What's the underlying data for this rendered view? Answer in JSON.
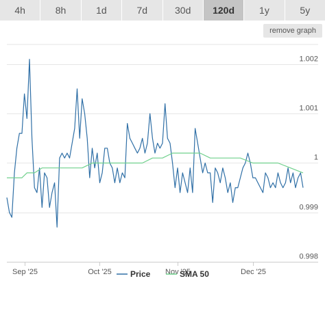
{
  "tabs": [
    {
      "label": "4h",
      "active": false
    },
    {
      "label": "8h",
      "active": false
    },
    {
      "label": "1d",
      "active": false
    },
    {
      "label": "7d",
      "active": false
    },
    {
      "label": "30d",
      "active": false
    },
    {
      "label": "120d",
      "active": true
    },
    {
      "label": "1y",
      "active": false
    },
    {
      "label": "5y",
      "active": false
    }
  ],
  "remove_graph_label": "remove graph",
  "colors": {
    "price": "#2f6fa6",
    "sma": "#6fd08c",
    "active_tab": "#c4c4c4",
    "tab": "#e6e6e6"
  },
  "chart_data": {
    "type": "line",
    "x_range": [
      "2025-08-25",
      "2025-12-27"
    ],
    "ylim": [
      0.998,
      1.0024
    ],
    "y_ticks": [
      {
        "value": 1.002,
        "label": "1.002"
      },
      {
        "value": 1.001,
        "label": "1.001"
      },
      {
        "value": 1.0,
        "label": "1"
      },
      {
        "value": 0.999,
        "label": "0.999"
      },
      {
        "value": 0.998,
        "label": "0.998"
      }
    ],
    "x_ticks": [
      {
        "date": "2025-09-01",
        "label": "Sep '25"
      },
      {
        "date": "2025-10-01",
        "label": "Oct '25"
      },
      {
        "date": "2025-11-01",
        "label": "Nov '25"
      },
      {
        "date": "2025-12-01",
        "label": "Dec '25"
      }
    ],
    "grid": true,
    "legend_position": "bottom",
    "series": [
      {
        "name": "Price",
        "points": [
          [
            "2025-08-25",
            0.9993
          ],
          [
            "2025-08-26",
            0.999
          ],
          [
            "2025-08-27",
            0.9989
          ],
          [
            "2025-08-28",
            0.9998
          ],
          [
            "2025-08-29",
            1.0003
          ],
          [
            "2025-08-30",
            1.0006
          ],
          [
            "2025-08-31",
            1.0006
          ],
          [
            "2025-09-01",
            1.0014
          ],
          [
            "2025-09-02",
            1.0009
          ],
          [
            "2025-09-03",
            1.0021
          ],
          [
            "2025-09-04",
            1.0005
          ],
          [
            "2025-09-05",
            0.9995
          ],
          [
            "2025-09-06",
            0.9994
          ],
          [
            "2025-09-07",
            0.9999
          ],
          [
            "2025-09-08",
            0.9991
          ],
          [
            "2025-09-09",
            0.9998
          ],
          [
            "2025-09-10",
            0.9997
          ],
          [
            "2025-09-11",
            0.9991
          ],
          [
            "2025-09-12",
            0.9994
          ],
          [
            "2025-09-13",
            0.9996
          ],
          [
            "2025-09-14",
            0.9987
          ],
          [
            "2025-09-15",
            1.0001
          ],
          [
            "2025-09-16",
            1.0002
          ],
          [
            "2025-09-17",
            1.0001
          ],
          [
            "2025-09-18",
            1.0002
          ],
          [
            "2025-09-19",
            1.0001
          ],
          [
            "2025-09-20",
            1.0004
          ],
          [
            "2025-09-21",
            1.0007
          ],
          [
            "2025-09-22",
            1.0015
          ],
          [
            "2025-09-23",
            1.0005
          ],
          [
            "2025-09-24",
            1.0013
          ],
          [
            "2025-09-25",
            1.001
          ],
          [
            "2025-09-26",
            1.0005
          ],
          [
            "2025-09-27",
            0.9997
          ],
          [
            "2025-09-28",
            1.0003
          ],
          [
            "2025-09-29",
            0.9999
          ],
          [
            "2025-09-30",
            1.0002
          ],
          [
            "2025-10-01",
            0.9996
          ],
          [
            "2025-10-02",
            0.9998
          ],
          [
            "2025-10-03",
            1.0003
          ],
          [
            "2025-10-04",
            1.0003
          ],
          [
            "2025-10-05",
            1.0
          ],
          [
            "2025-10-06",
            0.9999
          ],
          [
            "2025-10-07",
            0.9996
          ],
          [
            "2025-10-08",
            0.9999
          ],
          [
            "2025-10-09",
            0.9996
          ],
          [
            "2025-10-10",
            0.9998
          ],
          [
            "2025-10-11",
            0.9997
          ],
          [
            "2025-10-12",
            1.0008
          ],
          [
            "2025-10-13",
            1.0005
          ],
          [
            "2025-10-14",
            1.0004
          ],
          [
            "2025-10-15",
            1.0003
          ],
          [
            "2025-10-16",
            1.0002
          ],
          [
            "2025-10-17",
            1.0003
          ],
          [
            "2025-10-18",
            1.0005
          ],
          [
            "2025-10-19",
            1.0002
          ],
          [
            "2025-10-20",
            1.0004
          ],
          [
            "2025-10-21",
            1.001
          ],
          [
            "2025-10-22",
            1.0005
          ],
          [
            "2025-10-23",
            1.0002
          ],
          [
            "2025-10-24",
            1.0004
          ],
          [
            "2025-10-25",
            1.0003
          ],
          [
            "2025-10-26",
            1.0004
          ],
          [
            "2025-10-27",
            1.0012
          ],
          [
            "2025-10-28",
            1.0005
          ],
          [
            "2025-10-29",
            1.0004
          ],
          [
            "2025-10-30",
            1.0
          ],
          [
            "2025-10-31",
            0.9995
          ],
          [
            "2025-11-01",
            0.9999
          ],
          [
            "2025-11-02",
            0.9994
          ],
          [
            "2025-11-03",
            0.9998
          ],
          [
            "2025-11-04",
            0.9996
          ],
          [
            "2025-11-05",
            0.9994
          ],
          [
            "2025-11-06",
            0.9999
          ],
          [
            "2025-11-07",
            0.9994
          ],
          [
            "2025-11-08",
            1.0007
          ],
          [
            "2025-11-09",
            1.0004
          ],
          [
            "2025-11-10",
            1.0001
          ],
          [
            "2025-11-11",
            0.9998
          ],
          [
            "2025-11-12",
            1.0
          ],
          [
            "2025-11-13",
            0.9998
          ],
          [
            "2025-11-14",
            0.9998
          ],
          [
            "2025-11-15",
            0.9992
          ],
          [
            "2025-11-16",
            0.9999
          ],
          [
            "2025-11-17",
            0.9998
          ],
          [
            "2025-11-18",
            0.9996
          ],
          [
            "2025-11-19",
            0.9999
          ],
          [
            "2025-11-20",
            0.9997
          ],
          [
            "2025-11-21",
            0.9994
          ],
          [
            "2025-11-22",
            0.9996
          ],
          [
            "2025-11-23",
            0.9992
          ],
          [
            "2025-11-24",
            0.9995
          ],
          [
            "2025-11-25",
            0.9995
          ],
          [
            "2025-11-26",
            0.9997
          ],
          [
            "2025-11-27",
            0.9999
          ],
          [
            "2025-11-28",
            1.0
          ],
          [
            "2025-11-29",
            1.0002
          ],
          [
            "2025-11-30",
            1.0
          ],
          [
            "2025-12-01",
            0.9997
          ],
          [
            "2025-12-02",
            0.9997
          ],
          [
            "2025-12-03",
            0.9996
          ],
          [
            "2025-12-04",
            0.9995
          ],
          [
            "2025-12-05",
            0.9994
          ],
          [
            "2025-12-06",
            0.9998
          ],
          [
            "2025-12-07",
            0.9997
          ],
          [
            "2025-12-08",
            0.9995
          ],
          [
            "2025-12-09",
            0.9996
          ],
          [
            "2025-12-10",
            0.9995
          ],
          [
            "2025-12-11",
            0.9998
          ],
          [
            "2025-12-12",
            0.9996
          ],
          [
            "2025-12-13",
            0.9995
          ],
          [
            "2025-12-14",
            0.9996
          ],
          [
            "2025-12-15",
            0.9999
          ],
          [
            "2025-12-16",
            0.9996
          ],
          [
            "2025-12-17",
            0.9998
          ],
          [
            "2025-12-18",
            0.9995
          ],
          [
            "2025-12-19",
            0.9997
          ],
          [
            "2025-12-20",
            0.9998
          ],
          [
            "2025-12-21",
            0.9995
          ]
        ]
      },
      {
        "name": "SMA 50",
        "points": [
          [
            "2025-08-25",
            0.9997
          ],
          [
            "2025-08-28",
            0.9997
          ],
          [
            "2025-08-31",
            0.9997
          ],
          [
            "2025-09-02",
            0.9998
          ],
          [
            "2025-09-05",
            0.9998
          ],
          [
            "2025-09-08",
            0.9999
          ],
          [
            "2025-09-12",
            0.9999
          ],
          [
            "2025-09-16",
            0.9999
          ],
          [
            "2025-09-20",
            0.9999
          ],
          [
            "2025-09-24",
            0.9999
          ],
          [
            "2025-09-28",
            1.0
          ],
          [
            "2025-10-02",
            1.0
          ],
          [
            "2025-10-06",
            1.0
          ],
          [
            "2025-10-10",
            1.0
          ],
          [
            "2025-10-14",
            1.0
          ],
          [
            "2025-10-18",
            1.0
          ],
          [
            "2025-10-22",
            1.0001
          ],
          [
            "2025-10-26",
            1.0001
          ],
          [
            "2025-10-30",
            1.0002
          ],
          [
            "2025-11-02",
            1.0002
          ],
          [
            "2025-11-06",
            1.0002
          ],
          [
            "2025-11-10",
            1.0002
          ],
          [
            "2025-11-14",
            1.0001
          ],
          [
            "2025-11-18",
            1.0001
          ],
          [
            "2025-11-22",
            1.0001
          ],
          [
            "2025-11-26",
            1.0001
          ],
          [
            "2025-12-01",
            1.0
          ],
          [
            "2025-12-06",
            1.0
          ],
          [
            "2025-12-11",
            1.0
          ],
          [
            "2025-12-16",
            0.9999
          ],
          [
            "2025-12-21",
            0.9998
          ]
        ]
      }
    ]
  }
}
